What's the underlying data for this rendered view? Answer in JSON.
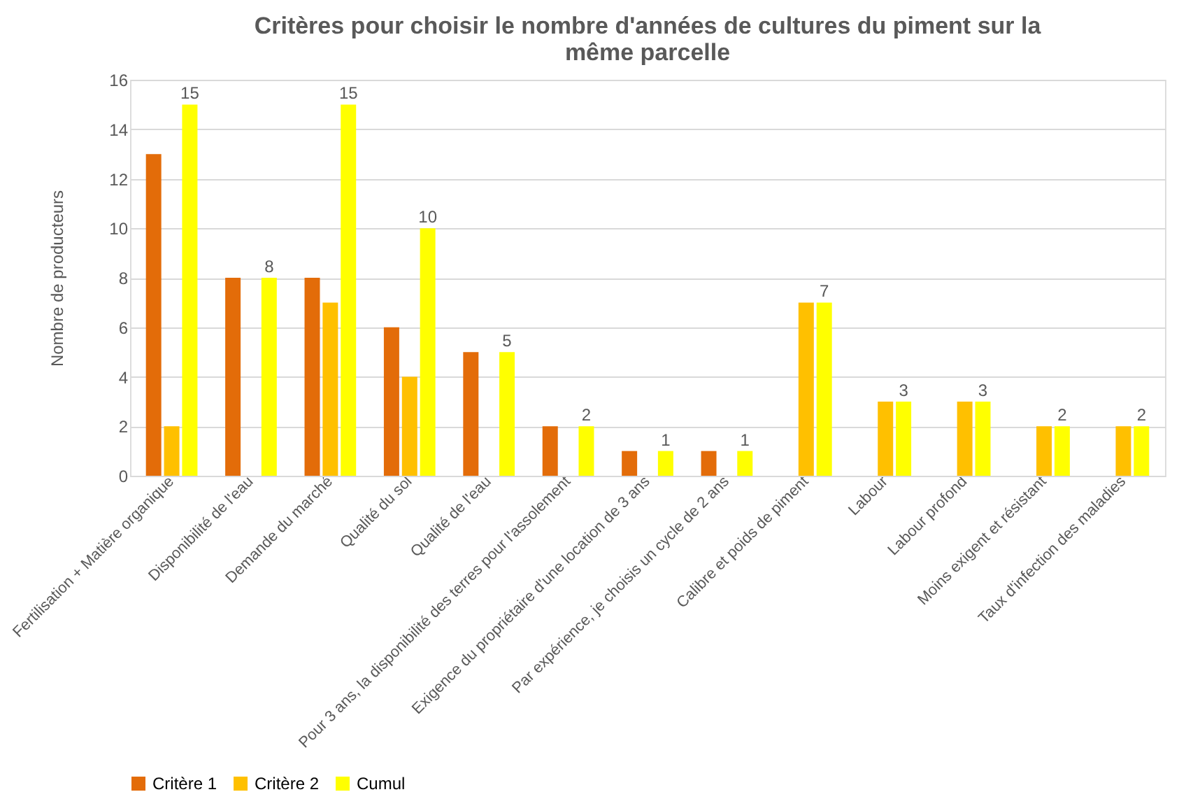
{
  "chart_data": {
    "type": "bar",
    "title": "Critères pour choisir le nombre d'années de cultures du piment sur la même parcelle",
    "ylabel": "Nombre de producteurs",
    "categories": [
      "Fertilisation + Matière organique",
      "Disponibilité de l'eau",
      "Demande du marché",
      "Qualité du sol",
      "Qualité de l'eau",
      "Pour 3 ans, la disponibilité des terres pour l'assolement",
      "Exigence du propriétaire d'une location de 3 ans",
      "Par expérience, je choisis un cycle de 2 ans",
      "Calibre et poids de piment",
      "Labour",
      "Labour profond",
      "Moins exigent et résistant",
      "Taux d'infection des maladies"
    ],
    "series": [
      {
        "name": "Critère 1",
        "color": "#e36c09",
        "values": [
          13,
          8,
          8,
          6,
          5,
          2,
          1,
          1,
          null,
          null,
          null,
          null,
          null
        ]
      },
      {
        "name": "Critère 2",
        "color": "#ffc000",
        "values": [
          2,
          null,
          7,
          4,
          null,
          null,
          null,
          null,
          7,
          3,
          3,
          2,
          2
        ]
      },
      {
        "name": "Cumul",
        "color": "#ffff00",
        "values": [
          15,
          8,
          15,
          10,
          5,
          2,
          1,
          1,
          7,
          3,
          3,
          2,
          2
        ],
        "value_labels": [
          "15",
          "8",
          "15",
          "10",
          "5",
          "2",
          "1",
          "1",
          "7",
          "3",
          "3",
          "2",
          "2"
        ]
      }
    ],
    "ylim": [
      0,
      16
    ],
    "yticks": [
      0,
      2,
      4,
      6,
      8,
      10,
      12,
      14,
      16
    ],
    "grid": "y",
    "legend": "bottom"
  }
}
